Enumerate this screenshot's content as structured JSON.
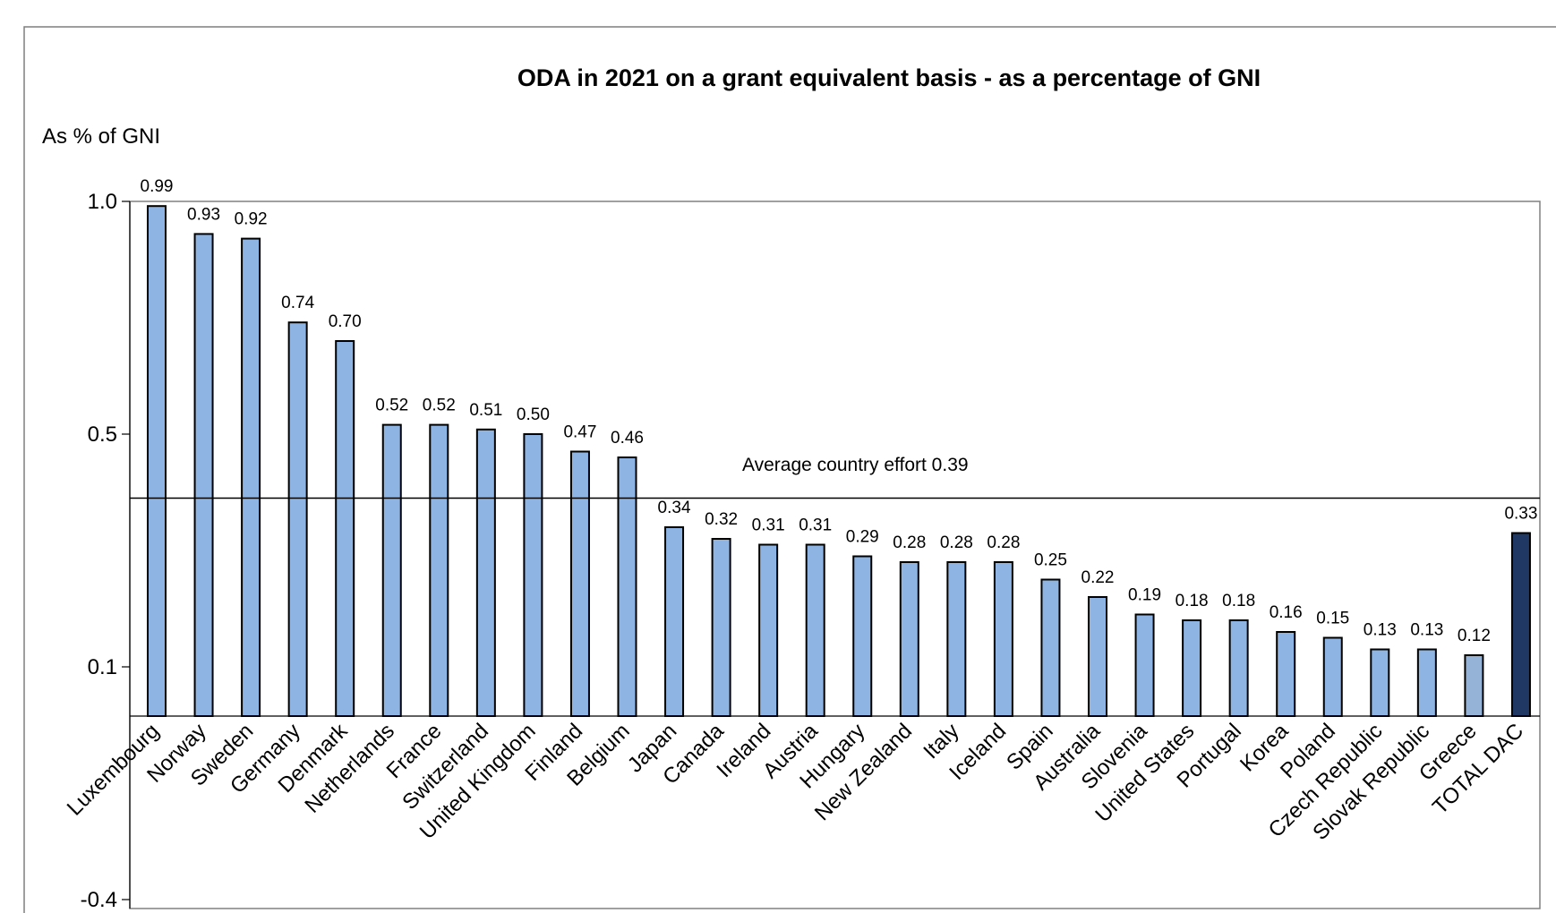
{
  "chart_data": {
    "type": "bar",
    "title": "ODA in 2021 on a grant equivalent basis - as a percentage of GNI",
    "ylabel": "As % of GNI",
    "xlabel": "",
    "categories": [
      "Luxembourg",
      "Norway",
      "Sweden",
      "Germany",
      "Denmark",
      "Netherlands",
      "France",
      "Switzerland",
      "United Kingdom",
      "Finland",
      "Belgium",
      "Japan",
      "Canada",
      "Ireland",
      "Austria",
      "Hungary",
      "New Zealand",
      "Italy",
      "Iceland",
      "Spain",
      "Australia",
      "Slovenia",
      "United States",
      "Portugal",
      "Korea",
      "Poland",
      "Czech Republic",
      "Slovak Republic",
      "Greece",
      "TOTAL DAC"
    ],
    "values": [
      0.99,
      0.93,
      0.92,
      0.74,
      0.7,
      0.52,
      0.52,
      0.51,
      0.5,
      0.47,
      0.46,
      0.34,
      0.32,
      0.31,
      0.31,
      0.29,
      0.28,
      0.28,
      0.28,
      0.25,
      0.22,
      0.19,
      0.18,
      0.18,
      0.16,
      0.15,
      0.13,
      0.13,
      0.12,
      0.33
    ],
    "value_labels": [
      "0.99",
      "0.93",
      "0.92",
      "0.74",
      "0.70",
      "0.52",
      "0.52",
      "0.51",
      "0.50",
      "0.47",
      "0.46",
      "0.34",
      "0.32",
      "0.31",
      "0.31",
      "0.29",
      "0.28",
      "0.28",
      "0.28",
      "0.25",
      "0.22",
      "0.19",
      "0.18",
      "0.18",
      "0.16",
      "0.15",
      "0.13",
      "0.13",
      "0.12",
      "0.33"
    ],
    "yticks": [
      1.0,
      0.5,
      0.1,
      -0.4
    ],
    "ytick_labels": [
      "1.0",
      "0.5",
      "0.1",
      "-0.4"
    ],
    "reference_line": {
      "value": 0.39,
      "label": "Average country effort 0.39"
    },
    "colors": {
      "default_bar": "#8db4e2",
      "greece_bar": "#95b3d7",
      "total_bar": "#1f3864",
      "line": "#000000"
    },
    "grid": false,
    "legend": "none"
  }
}
